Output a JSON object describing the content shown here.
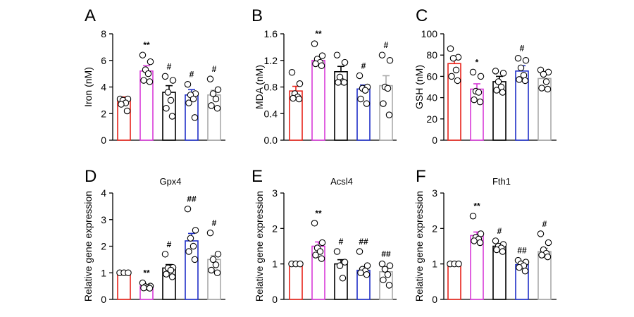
{
  "chart_data": [
    {
      "type": "bar",
      "panel_letter": "A",
      "title": "",
      "ylabel": "Iron (nM)",
      "ylim": [
        0,
        8
      ],
      "yticks": [
        "0",
        "2",
        "4",
        "6",
        "8"
      ],
      "bar_colors": [
        "#e8231a",
        "#d83ad8",
        "#000000",
        "#1f2fc8",
        "#aaaaaa"
      ],
      "values": [
        3.0,
        5.2,
        3.6,
        3.4,
        3.4
      ],
      "errors": [
        0.25,
        0.4,
        0.5,
        0.4,
        0.35
      ],
      "points": [
        [
          3.1,
          3.1,
          3.0,
          2.8,
          2.7,
          2.2
        ],
        [
          6.4,
          5.9,
          5.3,
          5.0,
          4.5,
          4.4
        ],
        [
          4.8,
          4.5,
          3.6,
          3.0,
          2.4,
          1.8
        ],
        [
          4.2,
          3.5,
          3.4,
          3.1,
          2.8,
          1.7
        ],
        [
          4.6,
          3.8,
          3.5,
          3.1,
          2.6,
          2.4
        ]
      ],
      "significance": [
        "",
        "**",
        "#",
        "#",
        "#"
      ]
    },
    {
      "type": "bar",
      "panel_letter": "B",
      "title": "",
      "ylabel": "MDA (nM)",
      "ylim": [
        0,
        1.6
      ],
      "yticks": [
        "0.0",
        "0.4",
        "0.8",
        "1.2",
        "1.6"
      ],
      "bar_colors": [
        "#e8231a",
        "#d83ad8",
        "#000000",
        "#1f2fc8",
        "#aaaaaa"
      ],
      "values": [
        0.74,
        1.2,
        1.03,
        0.77,
        0.82
      ],
      "errors": [
        0.07,
        0.05,
        0.08,
        0.06,
        0.15
      ],
      "points": [
        [
          1.02,
          0.85,
          0.7,
          0.65,
          0.63,
          0.62
        ],
        [
          1.45,
          1.27,
          1.22,
          1.17,
          1.15,
          1.12
        ],
        [
          1.28,
          1.17,
          0.95,
          0.88,
          0.87,
          0.87
        ],
        [
          0.97,
          0.8,
          0.78,
          0.75,
          0.62,
          0.55
        ],
        [
          1.28,
          1.2,
          0.8,
          0.78,
          0.55,
          0.38
        ]
      ],
      "significance": [
        "",
        "**",
        "",
        "#",
        "#"
      ]
    },
    {
      "type": "bar",
      "panel_letter": "C",
      "title": "",
      "ylabel": "GSH (nM)",
      "ylim": [
        0,
        100
      ],
      "yticks": [
        "0",
        "20",
        "40",
        "60",
        "80",
        "100"
      ],
      "bar_colors": [
        "#e8231a",
        "#d83ad8",
        "#000000",
        "#1f2fc8",
        "#aaaaaa"
      ],
      "values": [
        72,
        48,
        55,
        65,
        58
      ],
      "errors": [
        6,
        5,
        5,
        5,
        4
      ],
      "points": [
        [
          86,
          78,
          77,
          66,
          60,
          56
        ],
        [
          64,
          60,
          46,
          45,
          38,
          36
        ],
        [
          65,
          63,
          55,
          50,
          47,
          45
        ],
        [
          77,
          75,
          68,
          61,
          57,
          56
        ],
        [
          66,
          64,
          62,
          55,
          49,
          48
        ]
      ],
      "significance": [
        "",
        "*",
        "",
        "#",
        ""
      ]
    },
    {
      "type": "bar",
      "panel_letter": "D",
      "title": "Gpx4",
      "ylabel": "Relative gene expression",
      "ylim": [
        0,
        4
      ],
      "yticks": [
        "0",
        "1",
        "2",
        "3",
        "4"
      ],
      "bar_colors": [
        "#e8231a",
        "#d83ad8",
        "#000000",
        "#1f2fc8",
        "#aaaaaa"
      ],
      "values": [
        1.0,
        0.5,
        1.18,
        2.2,
        1.5
      ],
      "errors": [
        0.0,
        0.06,
        0.13,
        0.28,
        0.15
      ],
      "points": [
        [
          1.0,
          1.0,
          1.0
        ],
        [
          0.62,
          0.5,
          0.48,
          0.45,
          0.43,
          0.42
        ],
        [
          1.7,
          1.2,
          1.18,
          1.1,
          0.95,
          0.85
        ],
        [
          3.4,
          2.6,
          2.3,
          2.0,
          1.8,
          1.5
        ],
        [
          2.5,
          1.7,
          1.5,
          1.3,
          1.1,
          1.0
        ]
      ],
      "significance": [
        "",
        "**",
        "#",
        "##",
        "#"
      ]
    },
    {
      "type": "bar",
      "panel_letter": "E",
      "title": "Acsl4",
      "ylabel": "Relative gene expression",
      "ylim": [
        0,
        3
      ],
      "yticks": [
        "0",
        "1",
        "2",
        "3"
      ],
      "bar_colors": [
        "#e8231a",
        "#d83ad8",
        "#000000",
        "#1f2fc8",
        "#aaaaaa"
      ],
      "values": [
        1.0,
        1.5,
        1.0,
        0.82,
        0.78
      ],
      "errors": [
        0.0,
        0.12,
        0.12,
        0.07,
        0.12
      ],
      "points": [
        [
          1.0,
          1.0,
          1.0
        ],
        [
          2.15,
          1.6,
          1.45,
          1.35,
          1.25,
          1.15
        ],
        [
          1.35,
          1.05,
          0.95,
          0.6
        ],
        [
          1.35,
          0.95,
          0.85,
          0.8,
          0.75,
          0.7
        ],
        [
          1.0,
          0.95,
          0.85,
          0.7,
          0.55,
          0.4
        ]
      ],
      "significance": [
        "",
        "**",
        "#",
        "##",
        "##"
      ]
    },
    {
      "type": "bar",
      "panel_letter": "F",
      "title": "Fth1",
      "ylabel": "Relative gene expression",
      "ylim": [
        0,
        3
      ],
      "yticks": [
        "0",
        "1",
        "2",
        "3"
      ],
      "bar_colors": [
        "#e8231a",
        "#d83ad8",
        "#000000",
        "#1f2fc8",
        "#aaaaaa"
      ],
      "values": [
        1.0,
        1.8,
        1.5,
        0.98,
        1.35
      ],
      "errors": [
        0.0,
        0.1,
        0.05,
        0.06,
        0.09
      ],
      "points": [
        [
          1.0,
          1.0,
          1.0
        ],
        [
          2.35,
          1.85,
          1.75,
          1.7,
          1.65,
          1.6
        ],
        [
          1.65,
          1.55,
          1.5,
          1.45,
          1.4,
          1.35
        ],
        [
          1.1,
          1.05,
          1.0,
          0.95,
          0.9,
          0.8
        ],
        [
          1.85,
          1.6,
          1.4,
          1.3,
          1.25,
          1.2
        ]
      ],
      "significance": [
        "",
        "**",
        "#",
        "##",
        "#"
      ]
    }
  ]
}
